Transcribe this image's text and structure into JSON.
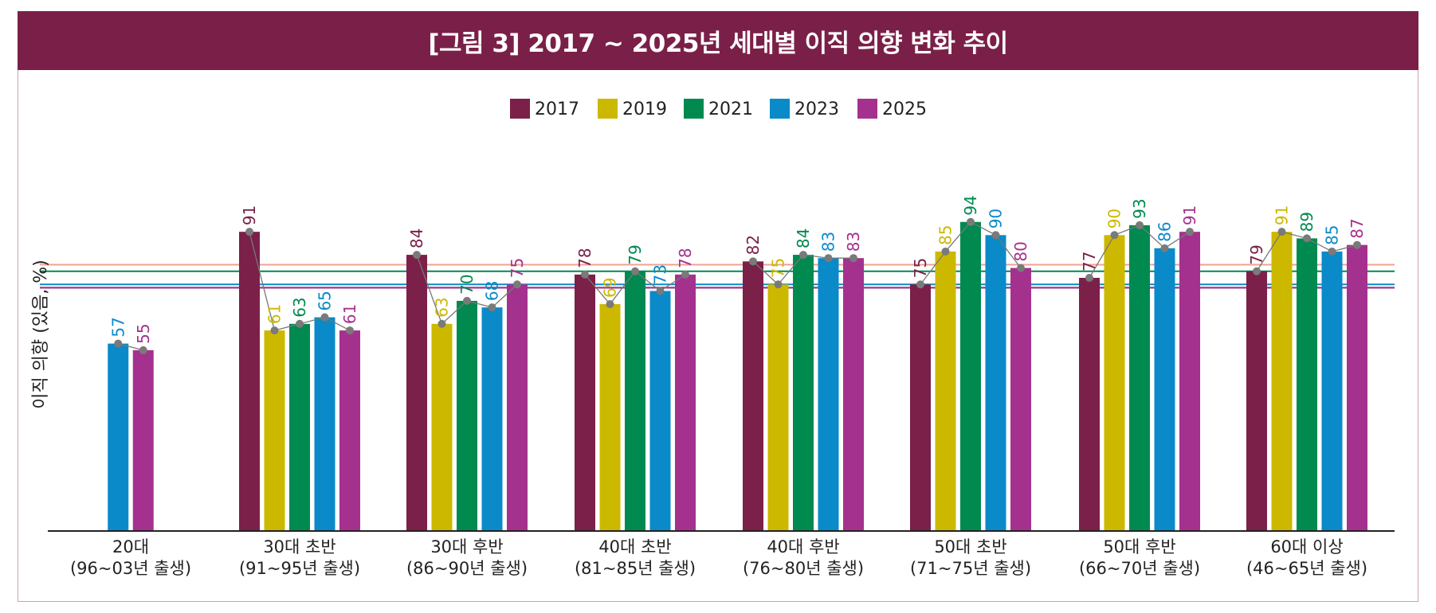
{
  "chart_data": {
    "type": "bar",
    "title": "[그림 3] 2017 ~ 2025년 세대별 이직 의향 변화 추이",
    "ylabel": "이직 의향 (있음, %)",
    "xlabel": "",
    "ylim": [
      0,
      100
    ],
    "grid": false,
    "legend_position": "top-center",
    "categories": [
      [
        "20대",
        "(96~03년 출생)"
      ],
      [
        "30대 초반",
        "(91~95년 출생)"
      ],
      [
        "30대 후반",
        "(86~90년 출생)"
      ],
      [
        "40대 초반",
        "(81~85년 출생)"
      ],
      [
        "40대 후반",
        "(76~80년 출생)"
      ],
      [
        "50대 초반",
        "(71~75년 출생)"
      ],
      [
        "50대 후반",
        "(66~70년 출생)"
      ],
      [
        "60대 이상",
        "(46~65년 출생)"
      ]
    ],
    "series": [
      {
        "name": "2017",
        "color": "#7b2049",
        "values": [
          null,
          91,
          84,
          78,
          82,
          75,
          77,
          79
        ]
      },
      {
        "name": "2019",
        "color": "#cdb800",
        "values": [
          null,
          61,
          63,
          69,
          75,
          85,
          90,
          91
        ]
      },
      {
        "name": "2021",
        "color": "#008a50",
        "values": [
          null,
          63,
          70,
          79,
          84,
          94,
          93,
          89
        ]
      },
      {
        "name": "2023",
        "color": "#0a8ac8",
        "values": [
          57,
          65,
          68,
          73,
          83,
          90,
          86,
          85
        ]
      },
      {
        "name": "2025",
        "color": "#a5318f",
        "values": [
          55,
          61,
          75,
          78,
          83,
          80,
          91,
          87
        ]
      }
    ],
    "reference_lines": [
      {
        "series": "2017",
        "value": 74,
        "color": "#7b2049"
      },
      {
        "series": "2019",
        "value": 81,
        "color": "#f0a090"
      },
      {
        "series": "2021",
        "value": 79,
        "color": "#008a50"
      },
      {
        "series": "2023",
        "value": 75,
        "color": "#0a8ac8"
      },
      {
        "series": "2025",
        "value": 74,
        "color": "#a5318f"
      }
    ],
    "connector_color": "#777777"
  }
}
